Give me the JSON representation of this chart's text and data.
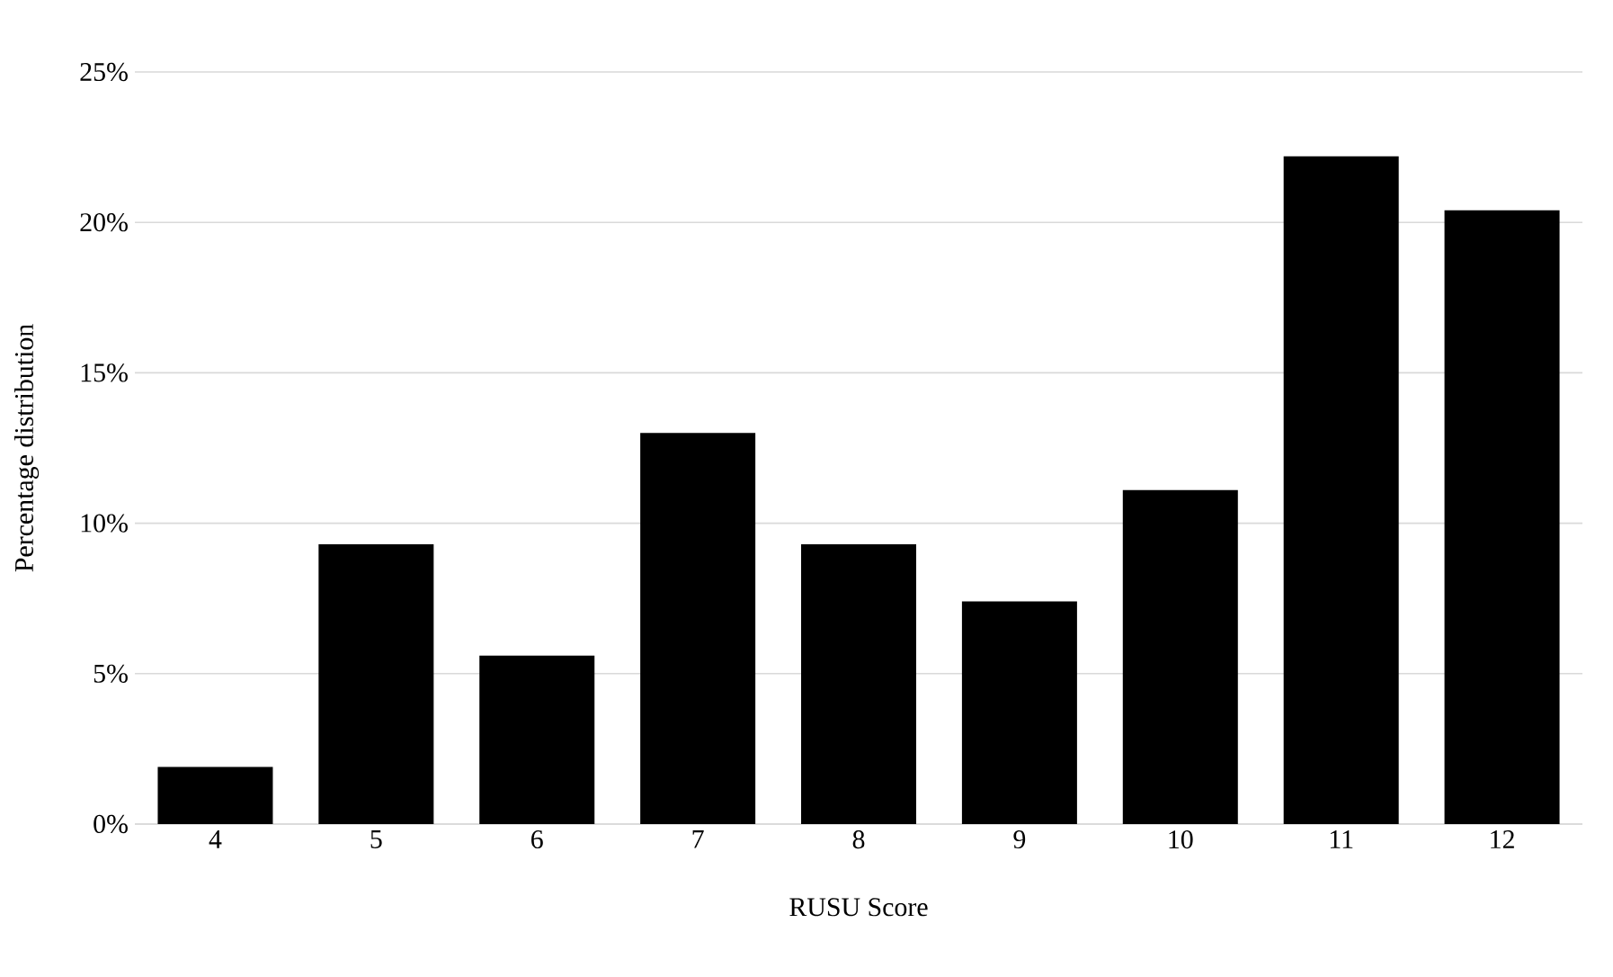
{
  "chart_data": {
    "type": "bar",
    "xlabel": "RUSU Score",
    "ylabel": "Percentage distribution",
    "categories": [
      "4",
      "5",
      "6",
      "7",
      "8",
      "9",
      "10",
      "11",
      "12"
    ],
    "values": [
      1.9,
      9.3,
      5.6,
      13.0,
      9.3,
      7.4,
      11.1,
      22.2,
      20.4
    ],
    "color": "#000000",
    "ylim": [
      0,
      25
    ],
    "yticks": [
      {
        "value": 0,
        "label": "0%"
      },
      {
        "value": 5,
        "label": "5%"
      },
      {
        "value": 10,
        "label": "10%"
      },
      {
        "value": 15,
        "label": "15%"
      },
      {
        "value": 20,
        "label": "20%"
      },
      {
        "value": 25,
        "label": "25%"
      }
    ],
    "grid": "y"
  }
}
